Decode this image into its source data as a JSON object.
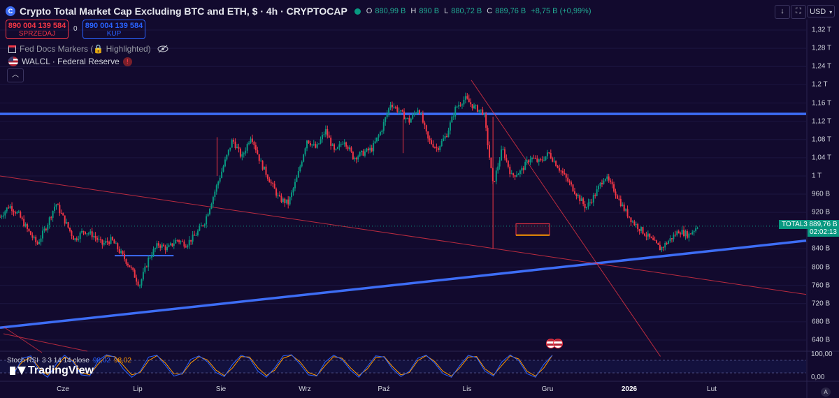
{
  "header": {
    "symbol_icon": "C",
    "title": "Crypto Total Market Cap Excluding BTC and ETH, $ · 4h · CRYPTOCAP",
    "ohlc": {
      "o_label": "O",
      "o_value": "880,99 B",
      "h_label": "H",
      "h_value": "890 B",
      "l_label": "L",
      "l_value": "880,72 B",
      "c_label": "C",
      "c_value": "889,76 B",
      "change": "+8,75 B (+0,99%)"
    }
  },
  "trade": {
    "sell_price": "890 004 139 584",
    "sell_label": "SPRZEDAJ",
    "spread": "0",
    "buy_price": "890 004 139 584",
    "buy_label": "KUP"
  },
  "indicators": {
    "fed_docs": "Fed Docs Markers (🔒 Highlighted)",
    "walcl": "WALCL · Federal Reserve",
    "walcl_warning": "!"
  },
  "toolbar": {
    "download_icon": "↓",
    "fullscreen_icon": "⛶",
    "camera_icon": "⬚",
    "currency": "USD",
    "collapse_icon": "︿"
  },
  "price_axis": {
    "labels": [
      "1,32 T",
      "1,28 T",
      "1,24 T",
      "1,2 T",
      "1,16 T",
      "1,12 T",
      "1,08 T",
      "1,04 T",
      "1 T",
      "960 B",
      "920 B",
      "840 B",
      "800 B",
      "760 B",
      "720 B",
      "680 B",
      "640 B"
    ],
    "values": [
      1320,
      1280,
      1240,
      1200,
      1160,
      1120,
      1080,
      1040,
      1000,
      960,
      920,
      840,
      800,
      760,
      720,
      680,
      640
    ],
    "current_symbol": "TOTAL3",
    "current_price": "889,76 B",
    "countdown": "02:02:13"
  },
  "stoch_axis": {
    "labels": [
      "100,00",
      "0,00"
    ]
  },
  "time_axis": {
    "labels": [
      "Cze",
      "Lip",
      "Sie",
      "Wrz",
      "Paź",
      "Lis",
      "Gru",
      "2026",
      "Lut"
    ]
  },
  "stoch_rsi": {
    "name": "Stoch RSI",
    "params": "3 3 14 14 close",
    "k_value": "98,02",
    "d_value": "98,02",
    "k_color": "#2962ff",
    "d_color": "#ff9800"
  },
  "branding": {
    "logo_text": "TradingView",
    "auto_label": "A"
  },
  "colors": {
    "background": "#120a2e",
    "bull": "#089981",
    "bear": "#f23645",
    "support_line": "#3d6df5"
  },
  "chart_data": {
    "type": "candlestick",
    "interval": "4h",
    "unit": "B USD",
    "ylim": [
      620,
      1340
    ],
    "close_path": [
      [
        0,
        910
      ],
      [
        3,
        935
      ],
      [
        6,
        915
      ],
      [
        9,
        880
      ],
      [
        12,
        850
      ],
      [
        15,
        890
      ],
      [
        18,
        940
      ],
      [
        21,
        900
      ],
      [
        24,
        860
      ],
      [
        27,
        880
      ],
      [
        30,
        870
      ],
      [
        33,
        850
      ],
      [
        36,
        860
      ],
      [
        39,
        830
      ],
      [
        42,
        800
      ],
      [
        45,
        760
      ],
      [
        48,
        820
      ],
      [
        51,
        850
      ],
      [
        54,
        840
      ],
      [
        57,
        860
      ],
      [
        60,
        850
      ],
      [
        63,
        870
      ],
      [
        66,
        900
      ],
      [
        69,
        960
      ],
      [
        72,
        1020
      ],
      [
        75,
        1080
      ],
      [
        78,
        1040
      ],
      [
        81,
        1090
      ],
      [
        84,
        1030
      ],
      [
        87,
        990
      ],
      [
        90,
        950
      ],
      [
        93,
        940
      ],
      [
        96,
        1000
      ],
      [
        99,
        1080
      ],
      [
        102,
        1060
      ],
      [
        105,
        1100
      ],
      [
        108,
        1050
      ],
      [
        111,
        1080
      ],
      [
        114,
        1040
      ],
      [
        117,
        1050
      ],
      [
        120,
        1060
      ],
      [
        123,
        1100
      ],
      [
        126,
        1160
      ],
      [
        129,
        1140
      ],
      [
        132,
        1120
      ],
      [
        135,
        1150
      ],
      [
        138,
        1080
      ],
      [
        141,
        1060
      ],
      [
        144,
        1090
      ],
      [
        147,
        1150
      ],
      [
        150,
        1170
      ],
      [
        153,
        1150
      ],
      [
        156,
        1140
      ],
      [
        159,
        980
      ],
      [
        162,
        1060
      ],
      [
        165,
        1000
      ],
      [
        168,
        1010
      ],
      [
        171,
        1040
      ],
      [
        174,
        1030
      ],
      [
        177,
        1050
      ],
      [
        180,
        1020
      ],
      [
        183,
        990
      ],
      [
        186,
        960
      ],
      [
        189,
        930
      ],
      [
        192,
        960
      ],
      [
        195,
        1000
      ],
      [
        198,
        970
      ],
      [
        201,
        930
      ],
      [
        204,
        900
      ],
      [
        207,
        880
      ],
      [
        210,
        860
      ],
      [
        213,
        840
      ],
      [
        216,
        860
      ],
      [
        219,
        880
      ],
      [
        222,
        870
      ],
      [
        225,
        890
      ]
    ],
    "stoch_k": [
      20,
      85,
      95,
      30,
      5,
      60,
      98,
      70,
      15,
      10,
      75,
      100,
      90,
      40,
      5,
      30,
      90,
      98,
      55,
      10,
      20,
      80,
      95,
      70,
      25,
      8,
      60,
      98,
      85,
      30,
      5,
      45,
      95,
      100,
      60,
      15,
      10,
      70,
      98,
      80,
      35,
      5,
      50,
      95,
      90,
      40,
      8,
      30,
      85,
      98,
      65,
      20,
      5,
      55,
      97,
      88,
      30,
      10,
      70,
      99,
      75,
      20,
      5,
      60,
      98
    ],
    "stoch_d": [
      30,
      70,
      90,
      45,
      15,
      45,
      90,
      75,
      25,
      15,
      60,
      95,
      92,
      55,
      15,
      25,
      75,
      96,
      65,
      20,
      18,
      65,
      92,
      78,
      35,
      12,
      45,
      92,
      90,
      45,
      12,
      35,
      85,
      98,
      70,
      25,
      12,
      55,
      92,
      85,
      45,
      12,
      40,
      88,
      92,
      50,
      15,
      25,
      75,
      96,
      72,
      30,
      10,
      45,
      90,
      92,
      40,
      15,
      55,
      95,
      82,
      30,
      10,
      45,
      98
    ],
    "lines": [
      {
        "name": "resistance",
        "color": "#3d6df5",
        "from": [
          0,
          1136
        ],
        "to": [
          260,
          1136
        ]
      },
      {
        "name": "rising-support",
        "color": "#3d6df5",
        "from": [
          0,
          667
        ],
        "to": [
          260,
          858
        ]
      },
      {
        "name": "falling-trend",
        "color": "#f23645",
        "from": [
          0,
          1000
        ],
        "to": [
          260,
          740
        ]
      },
      {
        "name": "descending-resistance",
        "color": "#f23645",
        "from": [
          152,
          1210
        ],
        "to": [
          213,
          604
        ]
      },
      {
        "name": "local-support",
        "color": "#3d6df5",
        "from": [
          37,
          825
        ],
        "to": [
          56,
          825
        ]
      }
    ]
  }
}
